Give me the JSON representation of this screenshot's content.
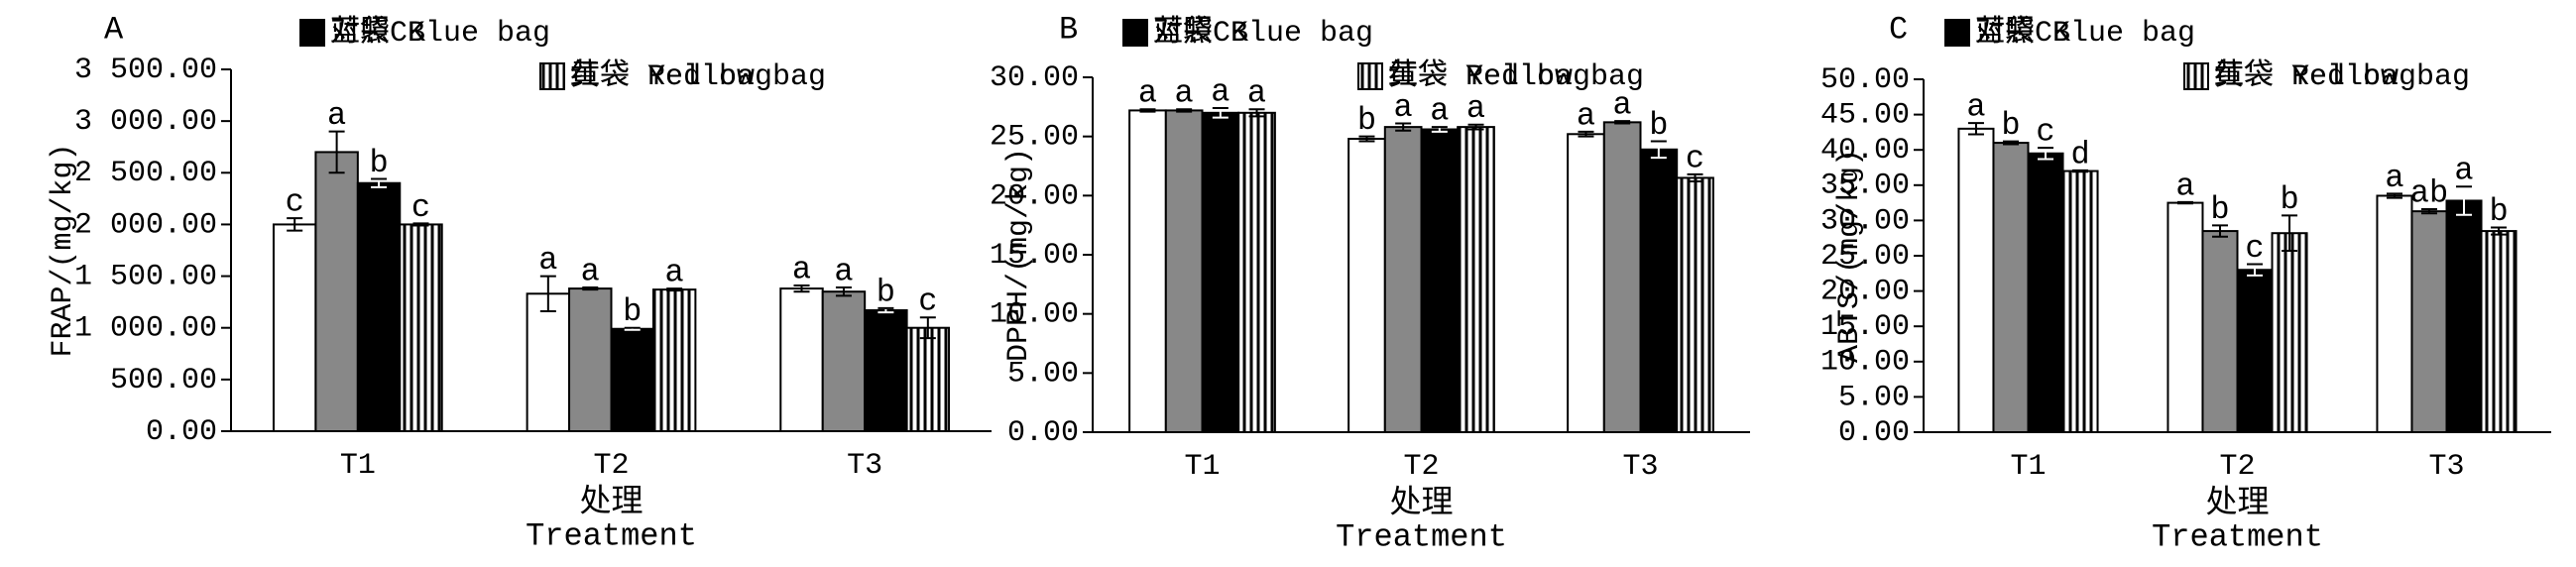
{
  "chart_data": [
    {
      "type": "bar",
      "panel": "A",
      "ylabel": "FRAP/(mg/kg)",
      "xlabel": "处理",
      "xlabel_en": "Treatment",
      "categories": [
        "T1",
        "T2",
        "T3"
      ],
      "ylim": [
        0,
        3500
      ],
      "yticks": [
        {
          "value": 0,
          "label": "0.00"
        },
        {
          "value": 500,
          "label": "500.00"
        },
        {
          "value": 1000,
          "label": "1 000.00"
        },
        {
          "value": 1500,
          "label": "1 500.00"
        },
        {
          "value": 2000,
          "label": "2 000.00"
        },
        {
          "value": 2500,
          "label": "2 500.00"
        },
        {
          "value": 3000,
          "label": "3 000.00"
        },
        {
          "value": 3500,
          "label": "3 500.00"
        }
      ],
      "series": [
        {
          "name": "对照CK",
          "color": "#ffffff",
          "values": [
            2000,
            1330,
            1380
          ],
          "errors": [
            60,
            170,
            30
          ],
          "labels": [
            "c",
            "a",
            "a"
          ]
        },
        {
          "name": "红袋 Red bag",
          "color": "#888888",
          "values": [
            2700,
            1380,
            1350
          ],
          "errors": [
            200,
            10,
            40
          ],
          "labels": [
            "a",
            "a",
            "a"
          ]
        },
        {
          "name": "蓝袋 Blue bag",
          "color": "#000000",
          "values": [
            2400,
            990,
            1170
          ],
          "errors": [
            40,
            10,
            20
          ],
          "labels": [
            "b",
            "b",
            "b"
          ]
        },
        {
          "name": "黄袋 Yellow bag",
          "color": "#ffffff",
          "hatch": "vertical",
          "values": [
            2000,
            1370,
            1000
          ],
          "errors": [
            10,
            10,
            100
          ],
          "labels": [
            "c",
            "a",
            "c"
          ]
        }
      ]
    },
    {
      "type": "bar",
      "panel": "B",
      "ylabel": "DPPH/(mg/kg)",
      "xlabel": "处理",
      "xlabel_en": "Treatment",
      "categories": [
        "T1",
        "T2",
        "T3"
      ],
      "ylim": [
        0,
        30
      ],
      "yticks": [
        {
          "value": 0,
          "label": "0.00"
        },
        {
          "value": 5,
          "label": "5.00"
        },
        {
          "value": 10,
          "label": "10.00"
        },
        {
          "value": 15,
          "label": "15.00"
        },
        {
          "value": 20,
          "label": "20.00"
        },
        {
          "value": 25,
          "label": "25.00"
        },
        {
          "value": 30,
          "label": "30.00"
        }
      ],
      "series": [
        {
          "name": "对照CK",
          "color": "#ffffff",
          "values": [
            27.2,
            24.8,
            25.2
          ],
          "errors": [
            0.1,
            0.2,
            0.2
          ],
          "labels": [
            "a",
            "b",
            "a"
          ]
        },
        {
          "name": "红袋 Red bag",
          "color": "#888888",
          "values": [
            27.2,
            25.8,
            26.2
          ],
          "errors": [
            0.1,
            0.3,
            0.1
          ],
          "labels": [
            "a",
            "a",
            "a"
          ]
        },
        {
          "name": "蓝袋 Blue bag",
          "color": "#000000",
          "values": [
            27.0,
            25.6,
            23.9
          ],
          "errors": [
            0.4,
            0.2,
            0.7
          ],
          "labels": [
            "a",
            "a",
            "b"
          ]
        },
        {
          "name": "黄袋 Yellow bag",
          "color": "#ffffff",
          "hatch": "vertical",
          "values": [
            27.0,
            25.8,
            21.5
          ],
          "errors": [
            0.3,
            0.2,
            0.3
          ],
          "labels": [
            "a",
            "a",
            "c"
          ]
        }
      ]
    },
    {
      "type": "bar",
      "panel": "C",
      "ylabel": "ABTS/(mg/kg)",
      "xlabel": "处理",
      "xlabel_en": "Treatment",
      "categories": [
        "T1",
        "T2",
        "T3"
      ],
      "ylim": [
        0,
        50
      ],
      "yticks": [
        {
          "value": 0,
          "label": "0.00"
        },
        {
          "value": 5,
          "label": "5.00"
        },
        {
          "value": 10,
          "label": "10.00"
        },
        {
          "value": 15,
          "label": "15.00"
        },
        {
          "value": 20,
          "label": "20.00"
        },
        {
          "value": 25,
          "label": "25.00"
        },
        {
          "value": 30,
          "label": "30.00"
        },
        {
          "value": 35,
          "label": "35.00"
        },
        {
          "value": 40,
          "label": "40.00"
        },
        {
          "value": 45,
          "label": "45.00"
        },
        {
          "value": 50,
          "label": "50.00"
        }
      ],
      "series": [
        {
          "name": "对照CK",
          "color": "#ffffff",
          "values": [
            43,
            32.5,
            33.5
          ],
          "errors": [
            0.8,
            0.1,
            0.3
          ],
          "labels": [
            "a",
            "a",
            "a"
          ]
        },
        {
          "name": "红袋 Red bag",
          "color": "#888888",
          "values": [
            41,
            28.5,
            31.3
          ],
          "errors": [
            0.2,
            0.8,
            0.3
          ],
          "labels": [
            "b",
            "b",
            "ab"
          ]
        },
        {
          "name": "蓝袋 Blue bag",
          "color": "#000000",
          "values": [
            39.5,
            23,
            32.8
          ],
          "errors": [
            0.8,
            0.8,
            2
          ],
          "labels": [
            "c",
            "c",
            "a"
          ]
        },
        {
          "name": "黄袋 Yellow bag",
          "color": "#ffffff",
          "hatch": "vertical",
          "values": [
            37,
            28.2,
            28.5
          ],
          "errors": [
            0.1,
            2.5,
            0.5
          ],
          "labels": [
            "d",
            "b",
            "b"
          ]
        }
      ]
    }
  ]
}
